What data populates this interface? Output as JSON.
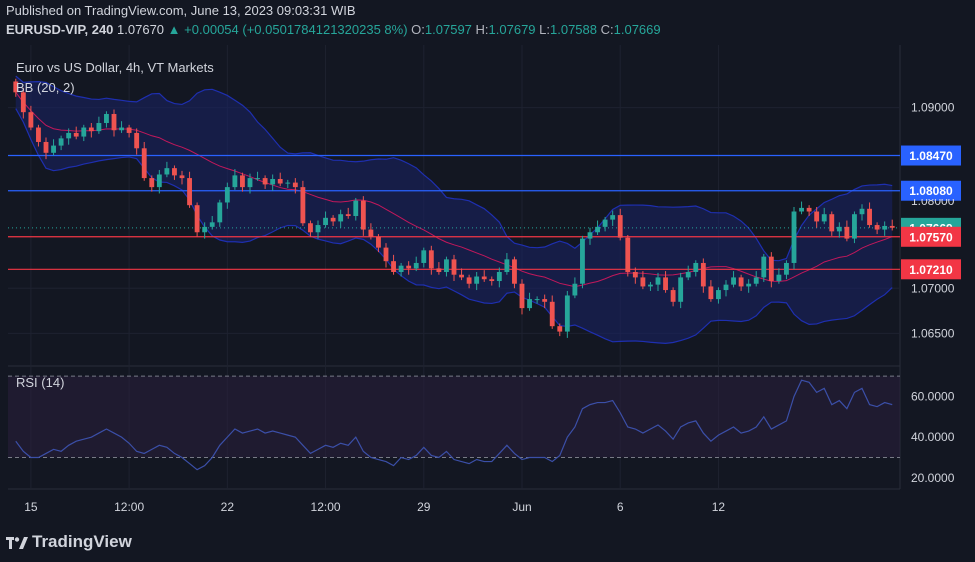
{
  "header": {
    "published": "Published on TradingView.com, June 13, 2023 09:03:31 WIB",
    "symbol": "EURUSD-VIP, 240",
    "last": "1.07670",
    "change_arrow": "▲",
    "change": "+0.00054 (+0.0501784121320235 8%)",
    "o_label": "O:",
    "o_value": "1.07597",
    "h_label": "H:",
    "h_value": "1.07679",
    "l_label": "L:",
    "l_value": "1.07588",
    "c_label": "C:",
    "c_value": "1.07669"
  },
  "branding": {
    "logo_text": "TradingView",
    "logo_icon": "tradingview-logo-icon"
  },
  "colors": {
    "background": "#131722",
    "up": "#26a69a",
    "down": "#ef5350",
    "bb_band": "#1e2fb0",
    "bb_basis": "#c2185b",
    "hline_blue": "#2962ff",
    "hline_red": "#f23645",
    "rsi_line": "#3b4fa8",
    "axis_text": "#d1d4dc"
  },
  "chart_data": {
    "type": "candlestick",
    "title": "Euro vs US Dollar, 4h, VT Markets",
    "indicator_label": "BB (20, 2)",
    "y_ticks": [
      "1.09000",
      "1.06500",
      "1.07000"
    ],
    "y_tick_values": [
      1.09,
      1.065,
      1.07
    ],
    "ylim": [
      1.0615,
      1.0955
    ],
    "x_tick_labels": [
      "15",
      "12:00",
      "22",
      "12:00",
      "29",
      "Jun",
      "6",
      "12"
    ],
    "x_tick_index": [
      2,
      15,
      28,
      41,
      54,
      67,
      80,
      93
    ],
    "price_labels": [
      {
        "label": "1.08470",
        "value": 1.0847,
        "kind": "blue"
      },
      {
        "label": "1.08080",
        "value": 1.0808,
        "kind": "blue"
      },
      {
        "label": "1.07669",
        "value": 1.07669,
        "kind": "last"
      },
      {
        "label": "1.07570",
        "value": 1.0757,
        "kind": "red"
      },
      {
        "label": "1.07210",
        "value": 1.0721,
        "kind": "red"
      }
    ],
    "hidden_tick": "1.08000",
    "closes": [
      1.0917,
      1.0895,
      1.0878,
      1.0862,
      1.085,
      1.0858,
      1.0866,
      1.0872,
      1.0868,
      1.0878,
      1.0874,
      1.0883,
      1.0893,
      1.0875,
      1.0878,
      1.0872,
      1.0855,
      1.0822,
      1.0812,
      1.0826,
      1.0833,
      1.0825,
      1.0822,
      1.0792,
      1.0762,
      1.0768,
      1.0773,
      1.0795,
      1.0812,
      1.0825,
      1.0812,
      1.0822,
      1.0822,
      1.0815,
      1.0821,
      1.0816,
      1.0817,
      1.0812,
      1.0772,
      1.0762,
      1.077,
      1.0778,
      1.0774,
      1.0782,
      1.078,
      1.0797,
      1.0765,
      1.0757,
      1.0745,
      1.073,
      1.0718,
      1.0725,
      1.0722,
      1.0728,
      1.0742,
      1.0722,
      1.0718,
      1.0732,
      1.0715,
      1.0712,
      1.0705,
      1.0713,
      1.071,
      1.0708,
      1.0718,
      1.0732,
      1.0705,
      1.0678,
      1.0688,
      1.0688,
      1.0685,
      1.0658,
      1.0652,
      1.0692,
      1.0705,
      1.0755,
      1.0762,
      1.0768,
      1.0776,
      1.0781,
      1.0756,
      1.0718,
      1.0712,
      1.0702,
      1.0704,
      1.0712,
      1.0698,
      1.0685,
      1.0712,
      1.0718,
      1.0728,
      1.0702,
      1.0688,
      1.0698,
      1.0704,
      1.0712,
      1.0702,
      1.0705,
      1.0712,
      1.0735,
      1.0708,
      1.0715,
      1.0728,
      1.0785,
      1.0789,
      1.0785,
      1.0774,
      1.0782,
      1.0763,
      1.0768,
      1.0755,
      1.0782,
      1.0788,
      1.077,
      1.0765,
      1.0769,
      1.0767
    ],
    "rsi": {
      "label": "RSI (14)",
      "ylim": [
        15,
        74
      ],
      "y_ticks": [
        "60.0000",
        "40.0000",
        "20.0000"
      ],
      "y_tick_values": [
        60,
        40,
        20
      ],
      "band_upper": 70,
      "band_lower": 30,
      "values": [
        38,
        33,
        30,
        30,
        32,
        34,
        33,
        36,
        38,
        39,
        40,
        42,
        44,
        42,
        40,
        37,
        33,
        32,
        34,
        36,
        35,
        32,
        30,
        27,
        24,
        26,
        30,
        36,
        40,
        44,
        42,
        43,
        44,
        42,
        43,
        42,
        41,
        40,
        36,
        32,
        34,
        36,
        35,
        37,
        36,
        40,
        33,
        30,
        29,
        28,
        26,
        30,
        29,
        31,
        35,
        31,
        30,
        33,
        29,
        28,
        27,
        29,
        28,
        28,
        32,
        36,
        32,
        29,
        30,
        30,
        30,
        28,
        31,
        40,
        45,
        54,
        56,
        57,
        57,
        58,
        52,
        45,
        44,
        42,
        44,
        46,
        43,
        39,
        45,
        47,
        48,
        42,
        38,
        41,
        43,
        45,
        42,
        43,
        45,
        50,
        44,
        46,
        48,
        60,
        68,
        67,
        62,
        64,
        56,
        58,
        54,
        62,
        64,
        56,
        55,
        57,
        56
      ]
    }
  }
}
